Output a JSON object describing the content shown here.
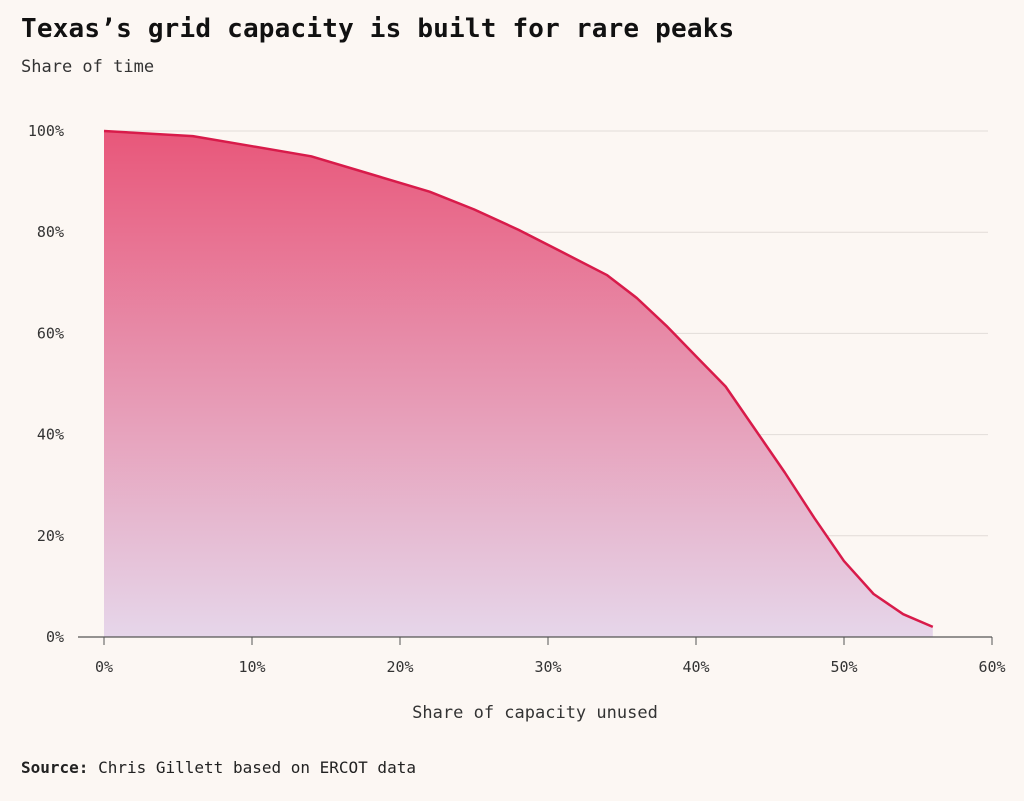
{
  "header": {
    "title": "Texas’s grid capacity is built for rare peaks",
    "subtitle": "Share of time"
  },
  "source": {
    "label": "Source:",
    "text": "Chris Gillett based on ERCOT data"
  },
  "colors": {
    "line": "#d81b4a",
    "fill_top": "#e8577a",
    "fill_bottom": "#e6d6ea",
    "grid": "#e2dcd8",
    "axis": "#555555"
  },
  "chart_data": {
    "type": "area",
    "title": "Texas’s grid capacity is built for rare peaks",
    "xlabel": "Share of capacity unused",
    "ylabel": "Share of time",
    "xlim": [
      0,
      60
    ],
    "ylim": [
      0,
      100
    ],
    "x_ticks": [
      "0%",
      "10%",
      "20%",
      "30%",
      "40%",
      "50%",
      "60%"
    ],
    "y_ticks": [
      "0%",
      "20%",
      "40%",
      "60%",
      "80%",
      "100%"
    ],
    "grid": true,
    "x": [
      0,
      6,
      10,
      14,
      18,
      22,
      25,
      28,
      31,
      34,
      36,
      38,
      40,
      42,
      44,
      46,
      48,
      50,
      52,
      54,
      56
    ],
    "y": [
      100,
      99,
      97,
      95,
      91.5,
      88,
      84.5,
      80.5,
      76,
      71.5,
      67,
      61.5,
      55.5,
      49.5,
      41,
      32.5,
      23.5,
      15,
      8.5,
      4.5,
      2
    ]
  }
}
